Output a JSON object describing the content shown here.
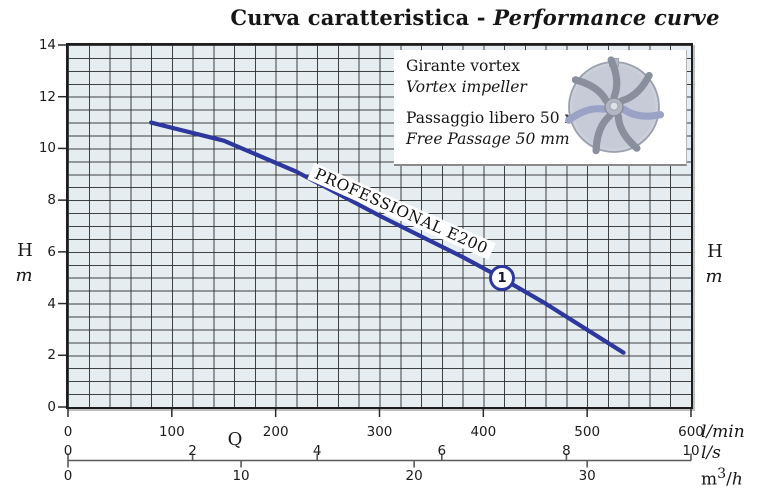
{
  "title": {
    "main": "Curva caratteristica - ",
    "italic": "Performance curve"
  },
  "axis_side": {
    "h": "H",
    "m": "m"
  },
  "q_label": "Q",
  "units": {
    "lmin": "l/min",
    "ls": "l/s",
    "m3h_base": "m",
    "m3h_sup": "3",
    "m3h_slash": "/",
    "m3h_h": "h"
  },
  "legend": {
    "line1": "Girante vortex",
    "line2": "Vortex impeller",
    "line3": "Passaggio libero 50 mm",
    "line4": "Free Passage 50 mm",
    "icon": "vortex-impeller-icon"
  },
  "curve_label": "PROFESSIONAL E200",
  "marker_label": "1",
  "chart_data": {
    "type": "line",
    "title": "Curva caratteristica - Performance curve",
    "xlabel": "Q",
    "ylabel": "H (m)",
    "grid": true,
    "y_axis": {
      "unit": "m",
      "range": [
        0,
        14
      ],
      "ticks": [
        0,
        2,
        4,
        6,
        8,
        10,
        12,
        14
      ],
      "minor_step": 0.5
    },
    "x_axes": [
      {
        "unit": "l/min",
        "range": [
          0,
          600
        ],
        "ticks": [
          0,
          100,
          200,
          300,
          400,
          500,
          600
        ],
        "minor_step": 20
      },
      {
        "unit": "l/s",
        "range": [
          0,
          10
        ],
        "ticks": [
          0,
          2,
          4,
          6,
          8,
          10
        ]
      },
      {
        "unit": "m3/h",
        "range": [
          0,
          36
        ],
        "ticks": [
          0,
          10,
          20,
          30
        ]
      }
    ],
    "series": [
      {
        "name": "PROFESSIONAL E200",
        "x_lmin": [
          80,
          150,
          220,
          300,
          380,
          417,
          460,
          535
        ],
        "h_m": [
          11.0,
          10.3,
          9.1,
          7.4,
          5.8,
          5.0,
          4.0,
          2.1
        ]
      }
    ],
    "marker": {
      "label": "1",
      "x_lmin": 417,
      "y_m": 5.0
    },
    "colors": {
      "curve": "#2d379e",
      "grid_line": "#2d2d2d",
      "grid_fill": "#e5edf0",
      "secondary_axis": "#5a5a5a",
      "tick": "#2a2a2a"
    }
  }
}
